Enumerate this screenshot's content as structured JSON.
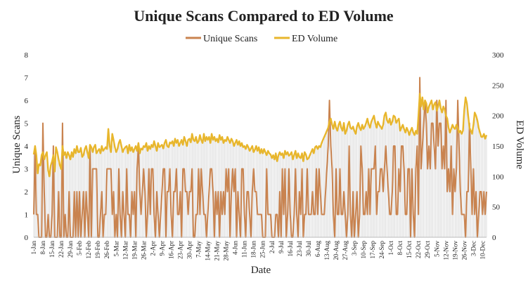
{
  "chart_data": {
    "type": "line",
    "title": "Unique Scans Compared to ED Volume",
    "xlabel": "Date",
    "ylabel_left": "Unique Scans",
    "ylabel_right": "ED Volume",
    "legend_position": "top-center",
    "grid": false,
    "ylim_left": [
      0,
      8
    ],
    "ylim_right": [
      0,
      300
    ],
    "yticks_left": [
      "0",
      "1",
      "2",
      "3",
      "4",
      "5",
      "6",
      "7",
      "8"
    ],
    "yticks_right": [
      "0",
      "50",
      "100",
      "150",
      "200",
      "250",
      "300"
    ],
    "x_tick_labels": [
      "1-Jan",
      "8-Jan",
      "15-Jan",
      "22-Jan",
      "29-Jan",
      "5-Feb",
      "12-Feb",
      "19-Feb",
      "26-Feb",
      "5-Mar",
      "12-Mar",
      "19-Mar",
      "26-Mar",
      "2-Apr",
      "9-Apr",
      "16-Apr",
      "23-Apr",
      "30-Apr",
      "7-May",
      "14-May",
      "21-May",
      "28-May",
      "4-Jun",
      "11-Jun",
      "18-Jun",
      "25-Jun",
      "2-Jul",
      "9-Jul",
      "16-Jul",
      "23-Jul",
      "30-Jul",
      "6-Aug",
      "13-Aug",
      "20-Aug",
      "27-Aug",
      "3-Sep",
      "10-Sep",
      "17-Sep",
      "24-Sep",
      "1-Oct",
      "8-Oct",
      "15-Oct",
      "22-Oct",
      "29-Oct",
      "5-Nov",
      "12-Nov",
      "19-Nov",
      "26-Nov",
      "3-Dec",
      "10-Dec"
    ],
    "series": [
      {
        "name": "Unique Scans",
        "axis": "left",
        "color": "#c9834f",
        "weekly_values": [
          [
            1,
            4,
            1,
            1,
            0,
            0,
            0
          ],
          [
            5,
            2,
            0,
            0,
            1,
            0,
            0
          ],
          [
            1,
            4,
            0,
            0,
            0,
            2,
            0
          ],
          [
            0,
            5,
            0,
            1,
            0,
            0,
            2
          ],
          [
            0,
            0,
            0,
            2,
            0,
            2,
            0
          ],
          [
            2,
            0,
            1,
            2,
            0,
            2,
            1
          ],
          [
            0,
            4,
            0,
            3,
            3,
            3,
            3
          ],
          [
            0,
            0,
            1,
            2,
            0,
            1,
            1
          ],
          [
            3,
            3,
            3,
            3,
            1,
            2,
            0
          ],
          [
            1,
            0,
            3,
            1,
            0,
            2,
            1
          ],
          [
            0,
            3,
            1,
            1,
            0,
            2,
            1
          ],
          [
            2,
            0,
            3,
            4,
            2,
            1,
            2
          ],
          [
            3,
            2,
            0,
            1,
            3,
            1,
            3
          ],
          [
            3,
            1,
            0,
            2,
            1,
            0,
            1
          ],
          [
            2,
            3,
            3,
            0,
            2,
            2,
            3
          ],
          [
            1,
            0,
            2,
            2,
            3,
            1,
            1
          ],
          [
            2,
            0,
            3,
            3,
            2,
            2,
            1
          ],
          [
            2,
            2,
            3,
            0,
            0,
            1,
            1
          ],
          [
            3,
            1,
            3,
            2,
            1,
            1,
            0
          ],
          [
            1,
            2,
            3,
            3,
            2,
            0,
            2
          ],
          [
            1,
            2,
            0,
            2,
            1,
            2,
            1
          ],
          [
            3,
            2,
            3,
            0,
            2,
            3,
            2
          ],
          [
            3,
            0,
            2,
            1,
            0,
            3,
            3
          ],
          [
            1,
            0,
            2,
            2,
            1,
            0,
            2
          ],
          [
            3,
            2,
            2,
            1,
            1,
            1,
            1
          ],
          [
            0,
            0,
            0,
            3,
            1,
            1,
            1
          ],
          [
            0,
            0,
            0,
            1,
            1,
            0,
            2
          ],
          [
            0,
            3,
            1,
            3,
            0,
            1,
            3
          ],
          [
            1,
            0,
            0,
            1,
            3,
            1,
            0
          ],
          [
            2,
            1,
            3,
            0,
            1,
            1,
            3
          ],
          [
            1,
            1,
            1,
            2,
            1,
            1,
            3
          ],
          [
            1,
            3,
            2,
            1,
            1,
            1,
            2
          ],
          [
            3,
            4,
            6,
            4,
            3,
            1,
            0
          ],
          [
            3,
            1,
            1,
            3,
            1,
            1,
            2
          ],
          [
            1,
            0,
            1,
            4,
            1,
            0,
            2
          ],
          [
            0,
            1,
            2,
            0,
            1,
            4,
            3
          ],
          [
            1,
            1,
            2,
            1,
            3,
            1,
            3
          ],
          [
            3,
            3,
            4,
            1,
            2,
            2,
            3
          ],
          [
            3,
            2,
            3,
            4,
            3,
            2,
            1
          ],
          [
            1,
            2,
            4,
            4,
            1,
            1,
            3
          ],
          [
            2,
            4,
            4,
            3,
            1,
            1,
            3
          ],
          [
            3,
            0,
            3,
            1,
            0,
            3,
            4
          ],
          [
            1,
            7,
            3,
            4,
            5,
            6,
            5
          ],
          [
            3,
            4,
            3,
            5,
            5,
            4,
            3
          ],
          [
            6,
            4,
            5,
            5,
            3,
            4,
            3
          ],
          [
            6,
            2,
            3,
            2,
            4,
            1,
            3
          ],
          [
            2,
            3,
            6,
            4,
            2,
            1,
            1
          ],
          [
            1,
            0,
            2,
            2,
            5,
            3,
            1
          ],
          [
            3,
            1,
            2,
            0,
            1,
            2,
            2
          ],
          [
            1,
            2,
            1,
            2
          ]
        ]
      },
      {
        "name": "ED Volume",
        "axis": "right",
        "color": "#e8b62c",
        "weekly_values": [
          [
            136,
            150,
            135,
            105,
            120,
            118,
            135
          ],
          [
            140,
            128,
            135,
            140,
            110,
            100,
            118
          ],
          [
            125,
            135,
            108,
            148,
            140,
            128,
            118
          ],
          [
            112,
            150,
            135,
            140,
            130,
            140,
            135
          ],
          [
            128,
            140,
            132,
            145,
            138,
            150,
            140
          ],
          [
            140,
            147,
            132,
            135,
            145,
            150,
            140
          ],
          [
            130,
            152,
            148,
            140,
            148,
            152,
            138
          ],
          [
            142,
            145,
            138,
            150,
            142,
            145,
            148
          ],
          [
            145,
            178,
            150,
            140,
            170,
            160,
            148
          ],
          [
            140,
            145,
            155,
            160,
            150,
            140,
            145
          ],
          [
            148,
            150,
            138,
            152,
            142,
            148,
            140
          ],
          [
            145,
            150,
            142,
            155,
            138,
            146,
            144
          ],
          [
            150,
            148,
            155,
            142,
            150,
            145,
            152
          ],
          [
            148,
            158,
            150,
            142,
            155,
            148,
            150
          ],
          [
            152,
            146,
            155,
            160,
            150,
            148,
            156
          ],
          [
            154,
            158,
            150,
            162,
            155,
            160,
            150
          ],
          [
            155,
            160,
            152,
            165,
            158,
            150,
            160
          ],
          [
            162,
            156,
            170,
            160,
            158,
            165,
            155
          ],
          [
            158,
            168,
            160,
            155,
            170,
            158,
            165
          ],
          [
            160,
            165,
            155,
            170,
            160,
            165,
            158
          ],
          [
            162,
            156,
            168,
            160,
            165,
            155,
            160
          ],
          [
            158,
            165,
            160,
            155,
            162,
            158,
            150
          ],
          [
            155,
            160,
            152,
            158,
            150,
            155,
            148
          ],
          [
            150,
            145,
            152,
            148,
            142,
            146,
            150
          ],
          [
            140,
            144,
            150,
            142,
            148,
            138,
            145
          ],
          [
            138,
            145,
            140,
            135,
            142,
            138,
            136
          ],
          [
            130,
            135,
            128,
            138,
            125,
            135,
            140
          ],
          [
            135,
            138,
            130,
            142,
            136,
            140,
            134
          ],
          [
            136,
            140,
            128,
            135,
            142,
            130,
            138
          ],
          [
            132,
            130,
            138,
            125,
            140,
            136,
            128
          ],
          [
            130,
            135,
            140,
            145,
            138,
            148,
            150
          ],
          [
            145,
            150,
            148,
            155,
            160,
            165,
            170
          ],
          [
            175,
            180,
            190,
            195,
            185,
            178,
            190
          ],
          [
            180,
            175,
            185,
            190,
            180,
            175,
            188
          ],
          [
            170,
            175,
            185,
            190,
            180,
            178,
            182
          ],
          [
            175,
            170,
            182,
            188,
            180,
            176,
            185
          ],
          [
            178,
            182,
            188,
            195,
            185,
            180,
            190
          ],
          [
            195,
            200,
            188,
            180,
            190,
            185,
            182
          ],
          [
            178,
            185,
            200,
            205,
            192,
            188,
            195
          ],
          [
            185,
            190,
            200,
            198,
            188,
            192,
            195
          ],
          [
            175,
            180,
            185,
            178,
            172,
            180,
            175
          ],
          [
            168,
            175,
            180,
            172,
            168,
            175,
            170
          ],
          [
            200,
            236,
            215,
            230,
            210,
            225,
            220
          ],
          [
            205,
            215,
            220,
            225,
            210,
            218,
            222
          ],
          [
            208,
            215,
            225,
            212,
            205,
            215,
            210
          ],
          [
            200,
            195,
            180,
            172,
            178,
            185,
            180
          ],
          [
            178,
            185,
            180,
            172,
            175,
            170,
            175
          ],
          [
            210,
            230,
            220,
            200,
            180,
            175,
            170
          ],
          [
            185,
            205,
            200,
            192,
            180,
            172,
            165
          ],
          [
            165,
            170,
            162,
            168
          ]
        ]
      }
    ]
  }
}
